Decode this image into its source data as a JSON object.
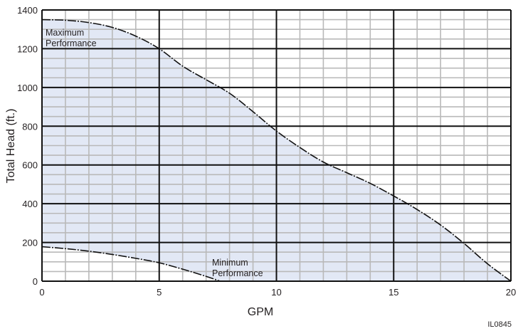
{
  "chart_data": {
    "type": "area",
    "x_range": [
      0,
      20
    ],
    "y_range": [
      0,
      1400
    ],
    "xlabel": "GPM",
    "ylabel": "Total Head (ft.)",
    "x_major_ticks": [
      0,
      5,
      10,
      15,
      20
    ],
    "y_major_ticks": [
      0,
      200,
      400,
      600,
      800,
      1000,
      1200,
      1400
    ],
    "x_tick_labels": [
      "0",
      "5",
      "10",
      "15",
      "20"
    ],
    "y_tick_labels": [
      "0",
      "200",
      "400",
      "600",
      "800",
      "1000",
      "1200",
      "1400"
    ],
    "x_minor_step": 1,
    "y_minor_step": 50,
    "grid": true,
    "fill_color": "#e2e8f5",
    "series": [
      {
        "name": "Maximum Performance",
        "points": [
          [
            0,
            1350
          ],
          [
            1,
            1347
          ],
          [
            2,
            1335
          ],
          [
            3,
            1310
          ],
          [
            4,
            1265
          ],
          [
            5,
            1200
          ],
          [
            6,
            1110
          ],
          [
            7,
            1040
          ],
          [
            8,
            970
          ],
          [
            9,
            875
          ],
          [
            10,
            775
          ],
          [
            11,
            690
          ],
          [
            12,
            615
          ],
          [
            13,
            560
          ],
          [
            14,
            505
          ],
          [
            15,
            440
          ],
          [
            16,
            370
          ],
          [
            17,
            290
          ],
          [
            18,
            195
          ],
          [
            19,
            90
          ],
          [
            20,
            0
          ]
        ]
      },
      {
        "name": "Minimum Performance",
        "points": [
          [
            0,
            178
          ],
          [
            1,
            168
          ],
          [
            2,
            155
          ],
          [
            3,
            138
          ],
          [
            4,
            118
          ],
          [
            5,
            95
          ],
          [
            6,
            62
          ],
          [
            7,
            25
          ],
          [
            7.6,
            0
          ]
        ]
      }
    ],
    "annotations": [
      {
        "line1": "Maximum",
        "line2": "Performance"
      },
      {
        "line1": "Minimum",
        "line2": "Performance"
      }
    ],
    "figure_id": "IL0845"
  }
}
